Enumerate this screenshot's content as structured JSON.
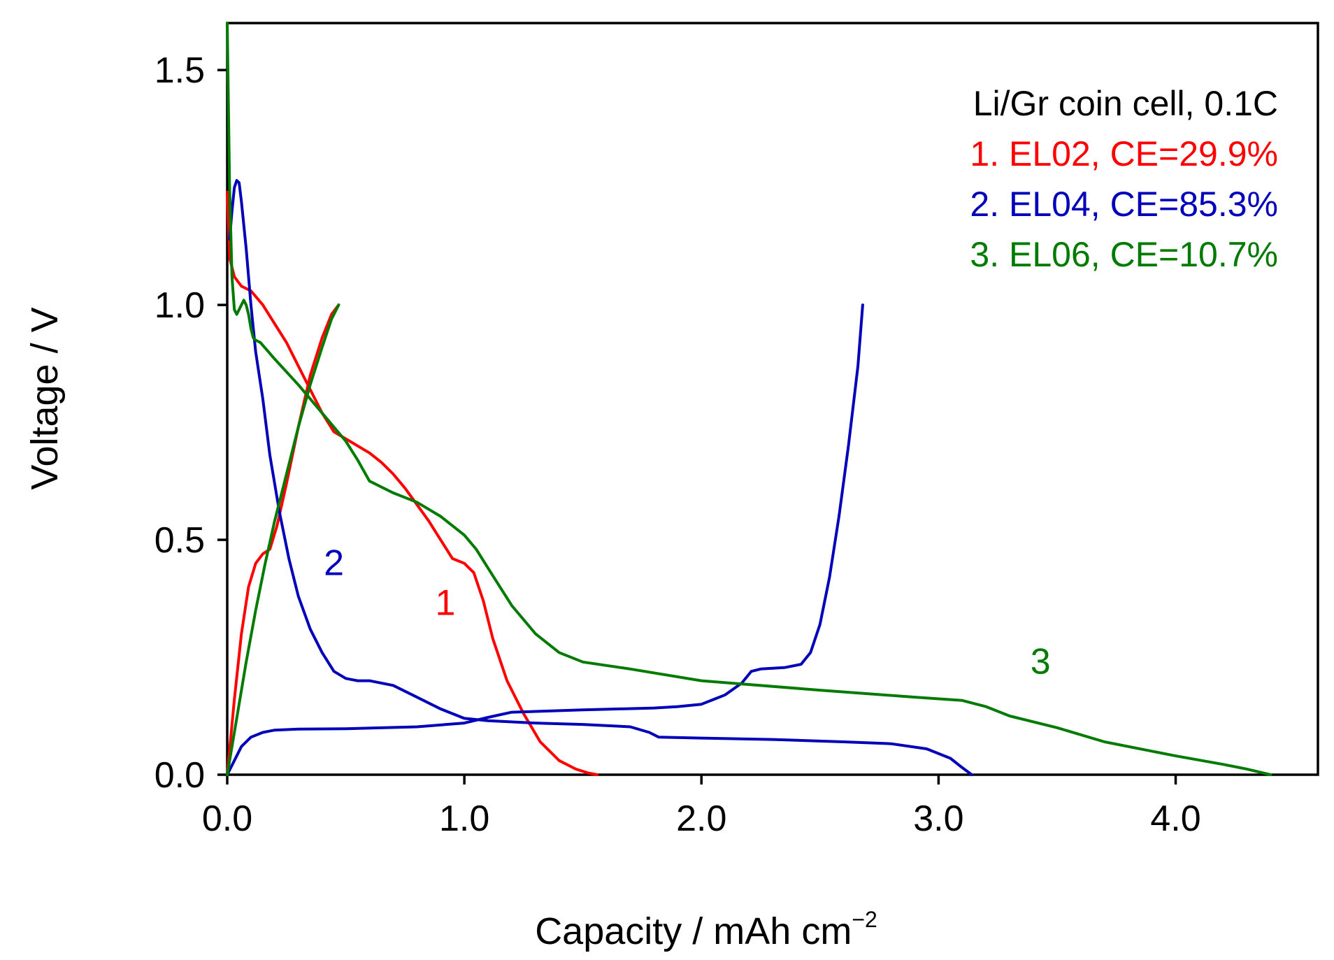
{
  "chart_data": {
    "type": "line",
    "title": "",
    "xlabel": "Capacity / mAh cm",
    "xlabel_sup": "−2",
    "ylabel": "Voltage / V",
    "xlim": [
      0,
      4.6
    ],
    "ylim": [
      0,
      1.6
    ],
    "xticks": [
      0,
      1,
      2,
      3,
      4
    ],
    "xtick_labels": [
      "0.0",
      "1.0",
      "2.0",
      "3.0",
      "4.0"
    ],
    "yticks": [
      0,
      0.5,
      1.0,
      1.5
    ],
    "ytick_labels": [
      "0.0",
      "0.5",
      "1.0",
      "1.5"
    ],
    "grid": false,
    "legend_position": "top-right",
    "legend_header": "Li/Gr coin cell, 0.1C",
    "series": [
      {
        "name": "1. EL02, CE=29.9%",
        "curve_label": "1",
        "color": "#ff0000",
        "label_at": [
          0.92,
          0.34
        ],
        "segments": [
          {
            "kind": "discharge",
            "x": [
              0.0,
              0.01,
              0.03,
              0.06,
              0.1,
              0.15,
              0.2,
              0.25,
              0.3,
              0.35,
              0.4,
              0.45,
              0.5,
              0.55,
              0.6,
              0.65,
              0.7,
              0.75,
              0.8,
              0.85,
              0.9,
              0.95,
              1.0,
              1.04,
              1.08,
              1.12,
              1.18,
              1.25,
              1.32,
              1.4,
              1.47,
              1.52,
              1.56
            ],
            "y": [
              1.24,
              1.1,
              1.06,
              1.04,
              1.03,
              1.0,
              0.96,
              0.92,
              0.87,
              0.82,
              0.77,
              0.73,
              0.715,
              0.7,
              0.685,
              0.665,
              0.64,
              0.61,
              0.575,
              0.54,
              0.5,
              0.46,
              0.45,
              0.43,
              0.37,
              0.29,
              0.2,
              0.13,
              0.07,
              0.03,
              0.012,
              0.004,
              0.0
            ]
          },
          {
            "kind": "charge",
            "x": [
              0.0,
              0.03,
              0.06,
              0.09,
              0.12,
              0.15,
              0.18,
              0.21,
              0.25,
              0.3,
              0.35,
              0.4,
              0.44,
              0.47
            ],
            "y": [
              0.0,
              0.16,
              0.3,
              0.4,
              0.45,
              0.47,
              0.48,
              0.53,
              0.62,
              0.74,
              0.85,
              0.93,
              0.98,
              1.0
            ]
          }
        ]
      },
      {
        "name": "2. EL04, CE=85.3%",
        "curve_label": "2",
        "color": "#0000bb",
        "label_at": [
          0.45,
          0.425
        ],
        "segments": [
          {
            "kind": "discharge",
            "x": [
              0.01,
              0.02,
              0.03,
              0.04,
              0.05,
              0.06,
              0.08,
              0.1,
              0.12,
              0.15,
              0.18,
              0.22,
              0.26,
              0.3,
              0.35,
              0.4,
              0.45,
              0.5,
              0.55,
              0.6,
              0.7,
              0.8,
              0.9,
              1.0,
              1.1,
              1.3,
              1.5,
              1.7,
              1.78,
              1.82,
              2.0,
              2.3,
              2.6,
              2.8,
              2.95,
              3.05,
              3.1,
              3.14
            ],
            "y": [
              1.14,
              1.2,
              1.25,
              1.265,
              1.26,
              1.22,
              1.12,
              1.0,
              0.9,
              0.8,
              0.68,
              0.56,
              0.46,
              0.38,
              0.31,
              0.26,
              0.22,
              0.205,
              0.2,
              0.2,
              0.19,
              0.165,
              0.14,
              0.12,
              0.115,
              0.11,
              0.107,
              0.102,
              0.09,
              0.08,
              0.078,
              0.075,
              0.07,
              0.066,
              0.055,
              0.035,
              0.015,
              0.0
            ]
          },
          {
            "kind": "charge",
            "x": [
              0.0,
              0.03,
              0.06,
              0.1,
              0.15,
              0.2,
              0.3,
              0.5,
              0.8,
              1.0,
              1.1,
              1.2,
              1.5,
              1.8,
              1.9,
              2.0,
              2.1,
              2.17,
              2.21,
              2.25,
              2.35,
              2.42,
              2.46,
              2.5,
              2.54,
              2.58,
              2.62,
              2.66,
              2.68
            ],
            "y": [
              0.0,
              0.03,
              0.06,
              0.08,
              0.09,
              0.095,
              0.097,
              0.098,
              0.102,
              0.11,
              0.122,
              0.133,
              0.138,
              0.142,
              0.145,
              0.15,
              0.17,
              0.195,
              0.22,
              0.225,
              0.228,
              0.235,
              0.26,
              0.32,
              0.42,
              0.55,
              0.7,
              0.87,
              1.0
            ]
          }
        ]
      },
      {
        "name": "3. EL06, CE=10.7%",
        "curve_label": "3",
        "color": "#007b00",
        "label_at": [
          3.43,
          0.215
        ],
        "segments": [
          {
            "kind": "discharge",
            "x": [
              0.0,
              0.01,
              0.02,
              0.03,
              0.04,
              0.05,
              0.06,
              0.07,
              0.08,
              0.09,
              0.1,
              0.11,
              0.12,
              0.14,
              0.2,
              0.3,
              0.4,
              0.5,
              0.55,
              0.6,
              0.7,
              0.8,
              0.9,
              1.0,
              1.05,
              1.1,
              1.15,
              1.2,
              1.3,
              1.4,
              1.5,
              1.7,
              2.0,
              2.5,
              2.9,
              3.1,
              3.2,
              3.3,
              3.5,
              3.7,
              4.0,
              4.2,
              4.3,
              4.4
            ],
            "y": [
              1.6,
              1.25,
              1.06,
              0.99,
              0.98,
              0.99,
              1.0,
              1.01,
              1.0,
              0.98,
              0.95,
              0.93,
              0.925,
              0.92,
              0.885,
              0.83,
              0.77,
              0.71,
              0.67,
              0.625,
              0.6,
              0.58,
              0.55,
              0.51,
              0.48,
              0.44,
              0.4,
              0.36,
              0.3,
              0.26,
              0.24,
              0.225,
              0.2,
              0.18,
              0.165,
              0.158,
              0.145,
              0.125,
              0.1,
              0.07,
              0.04,
              0.022,
              0.012,
              0.0
            ]
          },
          {
            "kind": "charge",
            "x": [
              0.0,
              0.04,
              0.08,
              0.12,
              0.16,
              0.2,
              0.25,
              0.3,
              0.35,
              0.4,
              0.44,
              0.47
            ],
            "y": [
              0.0,
              0.12,
              0.24,
              0.35,
              0.45,
              0.54,
              0.64,
              0.74,
              0.83,
              0.91,
              0.97,
              1.0
            ]
          }
        ]
      }
    ]
  }
}
